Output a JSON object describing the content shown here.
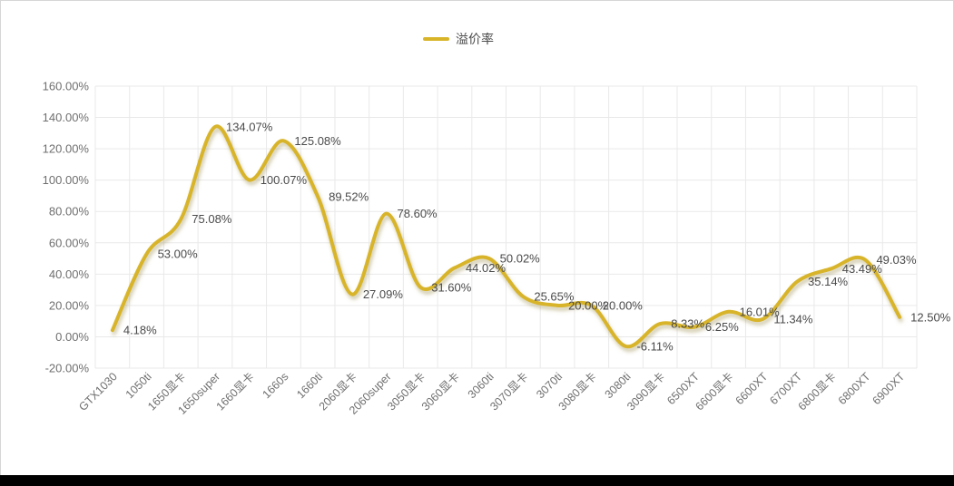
{
  "legend": {
    "label": "溢价率"
  },
  "colors": {
    "line": "#D8B429",
    "grid": "#e9e9e9",
    "axis_text": "#6f6f6f",
    "label_text": "#4a4a4a",
    "panel_border": "#d6d6d6",
    "bottom_bar": "#000000",
    "background": "#ffffff"
  },
  "chart_data": {
    "type": "line",
    "title": "",
    "smooth": true,
    "grid": true,
    "legend_position": "top",
    "value_suffix": "%",
    "categories": [
      "GTX1030",
      "1050ti",
      "1650显卡",
      "1650super",
      "1660显卡",
      "1660s",
      "1660ti",
      "2060显卡",
      "2060super",
      "3050显卡",
      "3060显卡",
      "3060ti",
      "3070显卡",
      "3070ti",
      "3080显卡",
      "3080ti",
      "3090显卡",
      "6500XT",
      "6600显卡",
      "6600XT",
      "6700XT",
      "6800显卡",
      "6800XT",
      "6900XT"
    ],
    "series": [
      {
        "name": "溢价率",
        "color": "#D8B429",
        "values": [
          4.18,
          53.0,
          75.08,
          134.07,
          100.07,
          125.08,
          89.52,
          27.09,
          78.6,
          31.6,
          44.02,
          50.02,
          25.65,
          20.0,
          20.0,
          -6.11,
          8.33,
          6.25,
          16.01,
          11.34,
          35.14,
          43.49,
          49.03,
          12.5
        ],
        "labels": [
          "4.18%",
          "53.00%",
          "75.08%",
          "134.07%",
          "100.07%",
          "125.08%",
          "89.52%",
          "27.09%",
          "78.60%",
          "31.60%",
          "44.02%",
          "50.02%",
          "25.65%",
          "20.00%",
          "20.00%",
          "-6.11%",
          "8.33%",
          "6.25%",
          "16.01%",
          "11.34%",
          "35.14%",
          "43.49%",
          "49.03%",
          "12.50%"
        ]
      }
    ],
    "y_ticks": [
      "160.00%",
      "140.00%",
      "120.00%",
      "100.00%",
      "80.00%",
      "60.00%",
      "40.00%",
      "20.00%",
      "0.00%",
      "-20.00%"
    ],
    "ylim": [
      -20,
      160
    ],
    "xlabel": "",
    "ylabel": ""
  }
}
